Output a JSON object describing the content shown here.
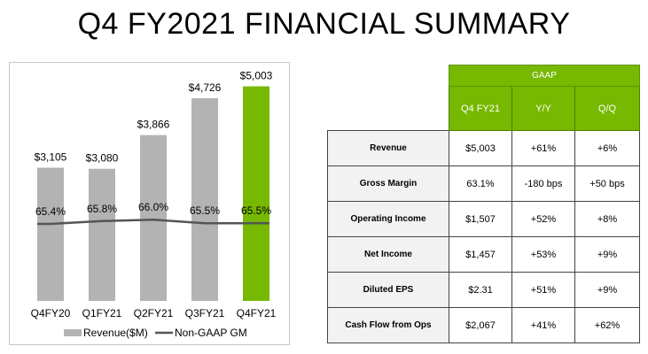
{
  "title": "Q4 FY2021 FINANCIAL SUMMARY",
  "chart_data": {
    "type": "bar",
    "categories": [
      "Q4FY20",
      "Q1FY21",
      "Q2FY21",
      "Q3FY21",
      "Q4FY21"
    ],
    "series": [
      {
        "name": "Revenue($M)",
        "values": [
          3105,
          3080,
          3866,
          4726,
          5003
        ],
        "value_labels": [
          "$3,105",
          "$3,080",
          "$3,866",
          "$4,726",
          "$5,003"
        ]
      },
      {
        "name": "Non-GAAP GM",
        "type": "line",
        "values": [
          65.4,
          65.8,
          66.0,
          65.5,
          65.5
        ],
        "value_labels": [
          "65.4%",
          "65.8%",
          "66.0%",
          "65.5%",
          "65.5%"
        ]
      }
    ],
    "legend": [
      "Revenue($M)",
      "Non-GAAP GM"
    ],
    "legend_position": "bottom",
    "colors": {
      "bar": "#b3b3b3",
      "highlight_bar": "#76b900",
      "line": "#555555"
    },
    "highlight_index": 4,
    "ylim": [
      0,
      5200
    ],
    "grid": false
  },
  "table": {
    "group_header": "GAAP",
    "columns": [
      "Q4 FY21",
      "Y/Y",
      "Q/Q"
    ],
    "rows": [
      {
        "label": "Revenue",
        "values": [
          "$5,003",
          "+61%",
          "+6%"
        ]
      },
      {
        "label": "Gross Margin",
        "values": [
          "63.1%",
          "-180 bps",
          "+50 bps"
        ]
      },
      {
        "label": "Operating Income",
        "values": [
          "$1,507",
          "+52%",
          "+8%"
        ]
      },
      {
        "label": "Net Income",
        "values": [
          "$1,457",
          "+53%",
          "+9%"
        ]
      },
      {
        "label": "Diluted EPS",
        "values": [
          "$2.31",
          "+51%",
          "+9%"
        ]
      },
      {
        "label": "Cash Flow from Ops",
        "values": [
          "$2,067",
          "+41%",
          "+62%"
        ]
      }
    ],
    "colors": {
      "header": "#76b900",
      "label_bg": "#f2f2f2"
    }
  }
}
